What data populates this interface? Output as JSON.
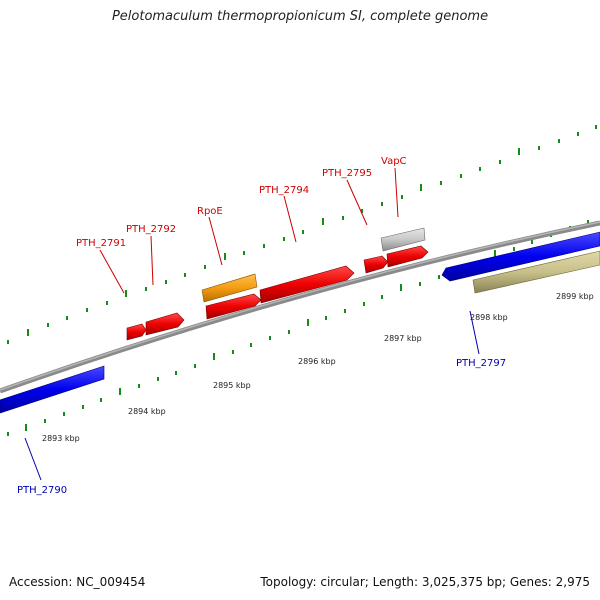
{
  "title": "Pelotomaculum thermopropionicum SI, complete genome",
  "footer": {
    "accession": "Accession: NC_009454",
    "summary": "Topology: circular; Length: 3,025,375 bp; Genes: 2,975"
  },
  "kbp_labels": [
    "2893 kbp",
    "2894 kbp",
    "2895 kbp",
    "2896 kbp",
    "2897 kbp",
    "2898 kbp",
    "2899 kbp"
  ],
  "gene_labels": {
    "pth2791": "PTH_2791",
    "pth2792": "PTH_2792",
    "rpoe": "RpoE",
    "pth2794": "PTH_2794",
    "pth2795": "PTH_2795",
    "vapc": "VapC",
    "pth2790": "PTH_2790",
    "pth2797": "PTH_2797"
  },
  "colors": {
    "forward_gene": "#ee0000",
    "reverse_gene": "#0000ee",
    "rpoe": "#f39c12",
    "vapc": "#c8c8c8",
    "olive_feature": "#c8c08a",
    "backbone": "#888888",
    "tick": "#1a8a1a"
  }
}
